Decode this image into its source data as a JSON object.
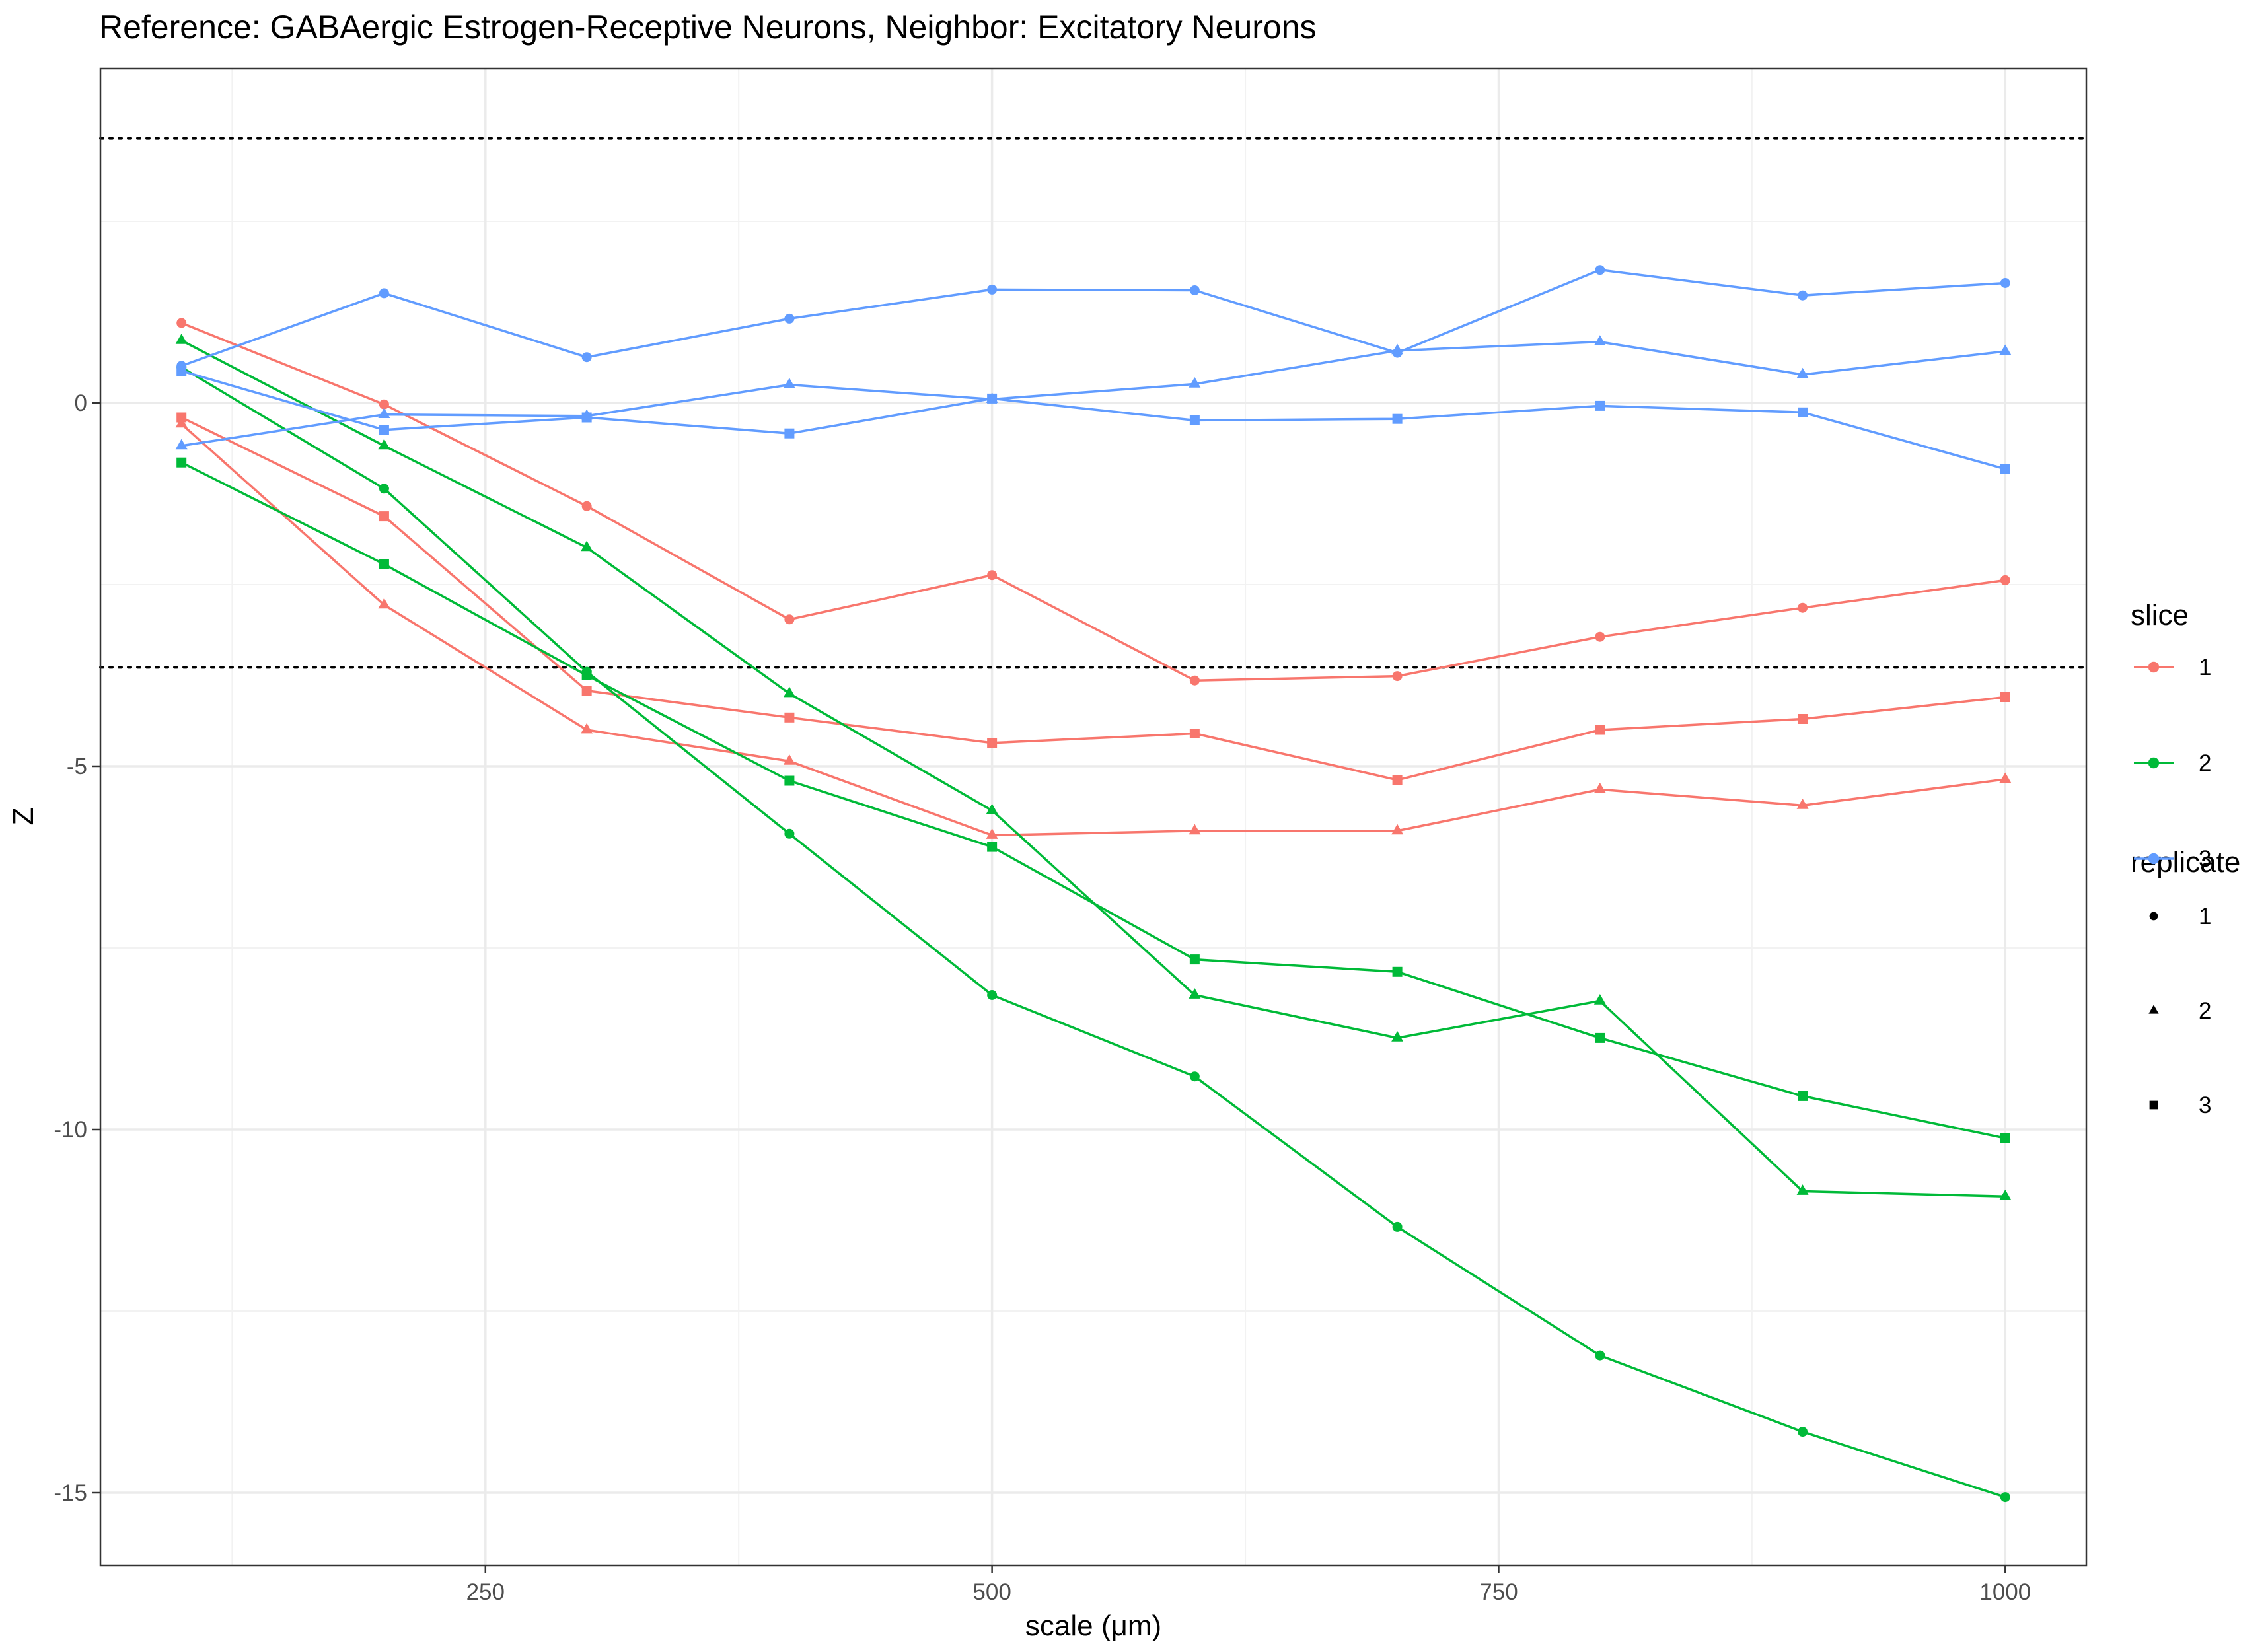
{
  "chart_data": {
    "type": "line",
    "title": "Reference: GABAergic Estrogen-Receptive Neurons, Neighbor: Excitatory Neurons",
    "xlabel": "scale (μm)",
    "ylabel": "Z",
    "xlim": [
      60,
      1040
    ],
    "ylim": [
      -16,
      4.6
    ],
    "x_ticks": [
      250,
      500,
      750,
      1000
    ],
    "x_tick_labels": [
      "250",
      "500",
      "750",
      "1000"
    ],
    "y_ticks": [
      0,
      -5,
      -10,
      -15
    ],
    "y_tick_labels": [
      "0",
      "-5",
      "-10",
      "-15"
    ],
    "reference_lines": [
      3.64,
      -3.64
    ],
    "x": [
      100,
      200,
      300,
      400,
      500,
      600,
      700,
      800,
      900,
      1000
    ],
    "legend": {
      "slice_title": "slice",
      "slice_items": [
        {
          "label": "1",
          "color": "#F8766D"
        },
        {
          "label": "2",
          "color": "#00BA38"
        },
        {
          "label": "3",
          "color": "#619CFF"
        }
      ],
      "replicate_title": "replicate",
      "replicate_items": [
        {
          "label": "1",
          "shape": "circle"
        },
        {
          "label": "2",
          "shape": "triangle"
        },
        {
          "label": "3",
          "shape": "square"
        }
      ]
    },
    "series": [
      {
        "slice": "1",
        "replicate": "1",
        "color": "#F8766D",
        "shape": "circle",
        "values": [
          1.1,
          -0.02,
          -1.42,
          -2.98,
          -2.37,
          -3.82,
          -3.76,
          -3.22,
          -2.82,
          -2.44
        ]
      },
      {
        "slice": "1",
        "replicate": "2",
        "color": "#F8766D",
        "shape": "triangle",
        "values": [
          -0.29,
          -2.78,
          -4.5,
          -4.93,
          -5.95,
          -5.89,
          -5.89,
          -5.32,
          -5.54,
          -5.18
        ]
      },
      {
        "slice": "1",
        "replicate": "3",
        "color": "#F8766D",
        "shape": "square",
        "values": [
          -0.2,
          -1.56,
          -3.96,
          -4.33,
          -4.68,
          -4.55,
          -5.19,
          -4.5,
          -4.35,
          -4.05
        ]
      },
      {
        "slice": "2",
        "replicate": "1",
        "color": "#00BA38",
        "shape": "circle",
        "values": [
          0.49,
          -1.18,
          -3.7,
          -5.93,
          -8.15,
          -9.27,
          -11.34,
          -13.11,
          -14.16,
          -15.06
        ]
      },
      {
        "slice": "2",
        "replicate": "2",
        "color": "#00BA38",
        "shape": "triangle",
        "values": [
          0.86,
          -0.59,
          -1.99,
          -4.0,
          -5.61,
          -8.15,
          -8.74,
          -8.23,
          -10.85,
          -10.92
        ]
      },
      {
        "slice": "2",
        "replicate": "3",
        "color": "#00BA38",
        "shape": "square",
        "values": [
          -0.82,
          -2.22,
          -3.75,
          -5.2,
          -6.11,
          -7.66,
          -7.83,
          -8.74,
          -9.54,
          -10.12
        ]
      },
      {
        "slice": "3",
        "replicate": "1",
        "color": "#619CFF",
        "shape": "circle",
        "values": [
          0.51,
          1.51,
          0.63,
          1.16,
          1.56,
          1.55,
          0.69,
          1.83,
          1.48,
          1.65
        ]
      },
      {
        "slice": "3",
        "replicate": "2",
        "color": "#619CFF",
        "shape": "triangle",
        "values": [
          -0.59,
          -0.16,
          -0.18,
          0.25,
          0.05,
          0.26,
          0.72,
          0.84,
          0.39,
          0.71
        ]
      },
      {
        "slice": "3",
        "replicate": "3",
        "color": "#619CFF",
        "shape": "square",
        "values": [
          0.44,
          -0.37,
          -0.2,
          -0.42,
          0.06,
          -0.24,
          -0.22,
          -0.04,
          -0.13,
          -0.91
        ]
      }
    ]
  }
}
